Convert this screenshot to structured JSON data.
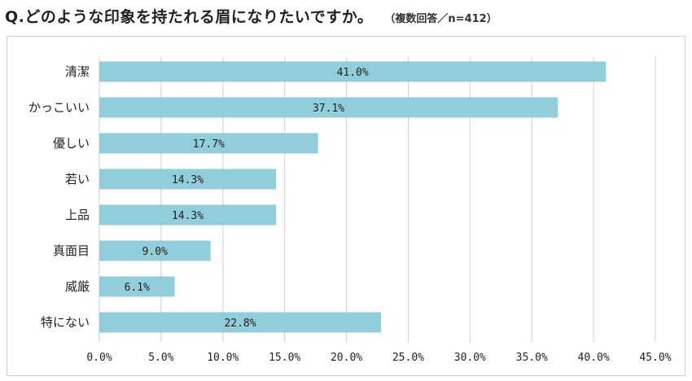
{
  "title": "Q.どのような印象を持たれる眉になりたいですか。",
  "note": "（複数回答／n=412）",
  "chart_data": {
    "type": "bar",
    "orientation": "horizontal",
    "categories": [
      "清潔",
      "かっこいい",
      "優しい",
      "若い",
      "上品",
      "真面目",
      "威厳",
      "特にない"
    ],
    "values": [
      41.0,
      37.1,
      17.7,
      14.3,
      14.3,
      9.0,
      6.1,
      22.8
    ],
    "value_labels": [
      "41.0%",
      "37.1%",
      "17.7%",
      "14.3%",
      "14.3%",
      "9.0%",
      "6.1%",
      "22.8%"
    ],
    "xlim": [
      0,
      45
    ],
    "xticks": [
      0,
      5,
      10,
      15,
      20,
      25,
      30,
      35,
      40,
      45
    ],
    "xtick_labels": [
      "0.0%",
      "5.0%",
      "10.0%",
      "15.0%",
      "20.0%",
      "25.0%",
      "30.0%",
      "35.0%",
      "40.0%",
      "45.0%"
    ],
    "grid": "vertical",
    "bar_color": "#92cddb"
  }
}
